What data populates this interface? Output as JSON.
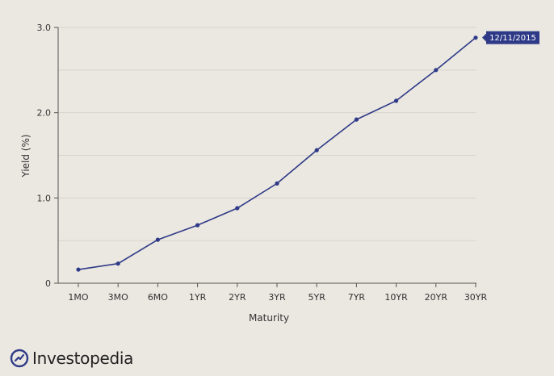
{
  "chart_data": {
    "type": "line",
    "title": "",
    "xlabel": "Maturity",
    "ylabel": "Yield (%)",
    "categories": [
      "1MO",
      "3MO",
      "6MO",
      "1YR",
      "2YR",
      "3YR",
      "5YR",
      "7YR",
      "10YR",
      "20YR",
      "30YR"
    ],
    "series": [
      {
        "values": [
          0.16,
          0.23,
          0.51,
          0.68,
          0.88,
          1.17,
          1.56,
          1.92,
          2.14,
          2.5,
          2.88
        ]
      }
    ],
    "ylim": [
      0,
      3.0
    ],
    "yticks": [
      0,
      1.0,
      2.0,
      3.0
    ],
    "ytick_labels": [
      "0",
      "1.0",
      "2.0",
      "3.0"
    ],
    "grid": true,
    "annotation": {
      "text": "12/11/2015",
      "category": "30YR"
    },
    "colors": {
      "line": "#2e3a87",
      "badge": "#2e3a87",
      "grid": "#d9d4cc",
      "axis": "#555555"
    }
  },
  "brand": {
    "name": "Investopedia"
  }
}
